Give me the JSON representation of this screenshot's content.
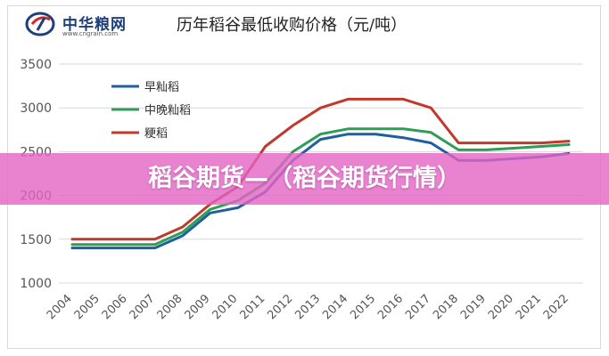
{
  "logo": {
    "name": "中华粮网",
    "url": "www.cngrain.com",
    "colors": {
      "primary": "#1f3f7a",
      "accent": "#d9252b"
    }
  },
  "overlay": {
    "text": "稻谷期货—（稻谷期货行情）",
    "color": "#e464c4"
  },
  "chart_data": {
    "type": "line",
    "title": "历年稻谷最低收购价格（元/吨）",
    "xlabel": "",
    "ylabel": "",
    "ylim": [
      1000,
      3500
    ],
    "yticks": [
      1000,
      1500,
      2000,
      2500,
      3000,
      3500
    ],
    "grid": true,
    "legend_position": "top-left",
    "x": [
      "2004",
      "2005",
      "2006",
      "2007",
      "2008",
      "2009",
      "2010",
      "2011",
      "2012",
      "2013",
      "2014",
      "2015",
      "2016",
      "2017",
      "2018",
      "2019",
      "2020",
      "2021",
      "2022"
    ],
    "series": [
      {
        "name": "早籼稻",
        "color": "#1f5f9e",
        "values": [
          1400,
          1400,
          1400,
          1400,
          1540,
          1800,
          1860,
          2040,
          2400,
          2640,
          2700,
          2700,
          2660,
          2600,
          2400,
          2400,
          2420,
          2440,
          2480
        ]
      },
      {
        "name": "中晚籼稻",
        "color": "#2e9e57",
        "values": [
          1440,
          1440,
          1440,
          1440,
          1580,
          1840,
          1940,
          2140,
          2500,
          2700,
          2760,
          2760,
          2760,
          2720,
          2520,
          2520,
          2540,
          2560,
          2580
        ]
      },
      {
        "name": "粳稻",
        "color": "#c0392b",
        "values": [
          1500,
          1500,
          1500,
          1500,
          1640,
          1900,
          2100,
          2560,
          2800,
          3000,
          3100,
          3100,
          3100,
          3000,
          2600,
          2600,
          2600,
          2600,
          2620
        ]
      }
    ]
  }
}
